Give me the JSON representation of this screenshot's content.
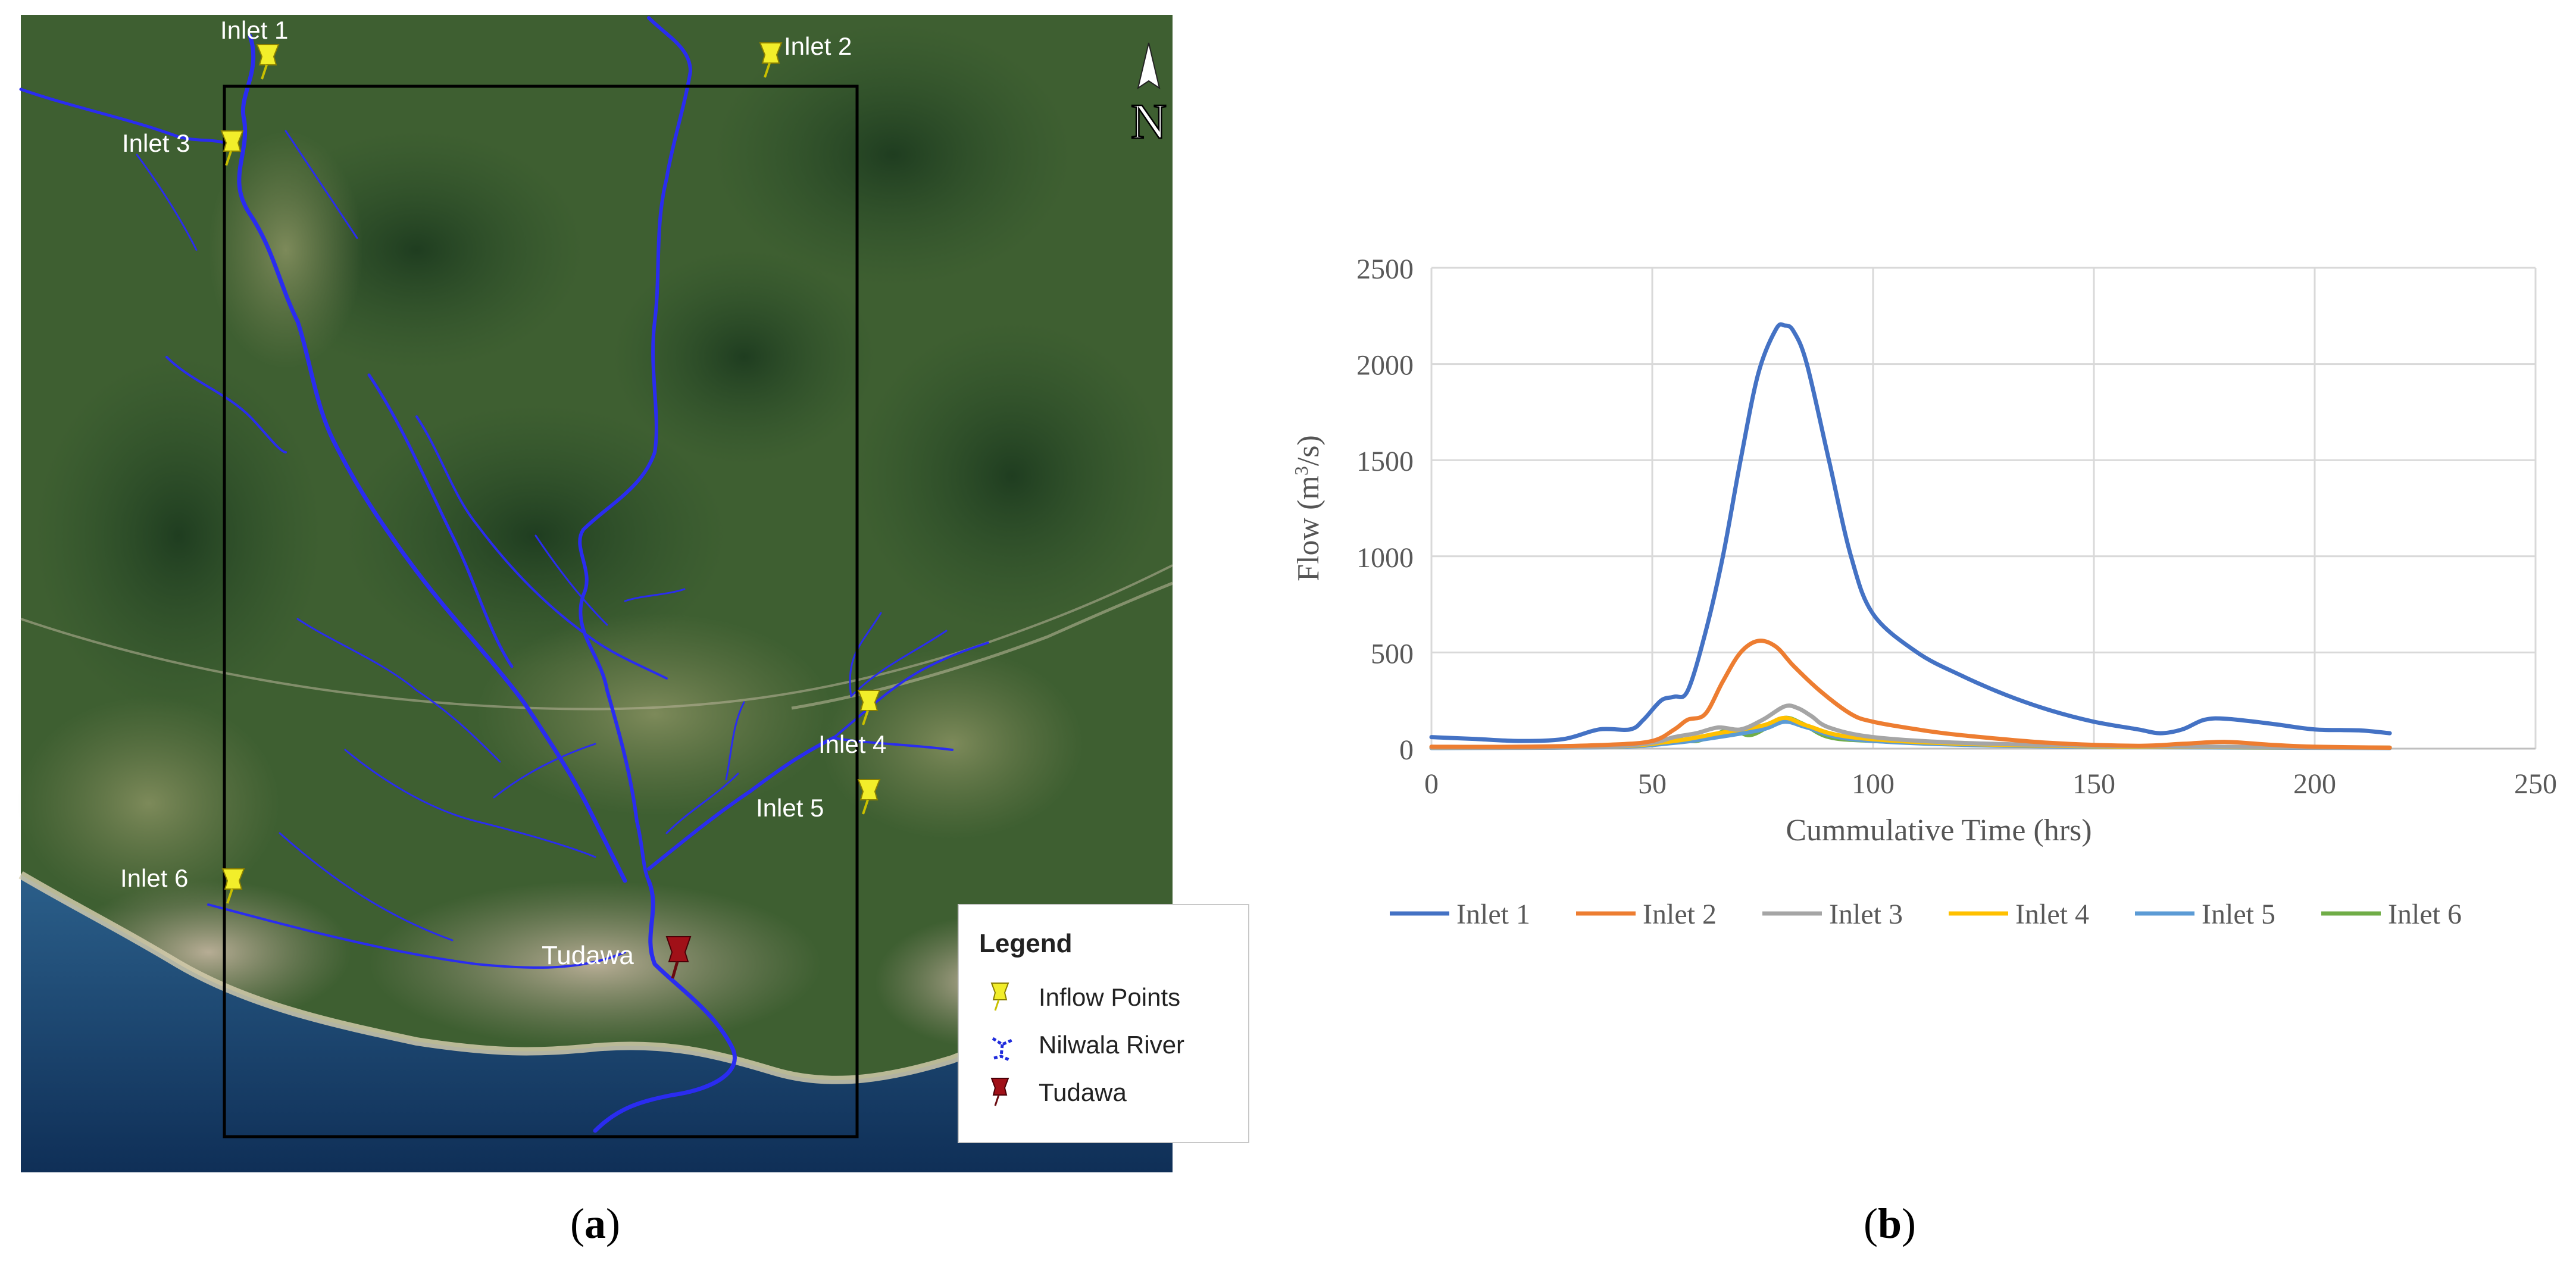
{
  "panel_a": {
    "caption_open": "(",
    "caption_letter": "a",
    "caption_close": ")",
    "north_label": "N",
    "inlets": [
      {
        "name": "Inlet 1"
      },
      {
        "name": "Inlet 2"
      },
      {
        "name": "Inlet 3"
      },
      {
        "name": "Inlet 4"
      },
      {
        "name": "Inlet 5"
      },
      {
        "name": "Inlet 6"
      }
    ],
    "tudawa_label": "Tudawa",
    "legend": {
      "title": "Legend",
      "items": [
        {
          "label": "Inflow Points",
          "color": "#f2ee2a"
        },
        {
          "label": "Nilwala River",
          "color": "#1f2bdc"
        },
        {
          "label": "Tudawa",
          "color": "#a01018"
        }
      ]
    },
    "colors": {
      "river": "#2a2cf0",
      "pin": "#f2ee2a",
      "tudawa_pin": "#a01018"
    }
  },
  "panel_b": {
    "caption_open": "(",
    "caption_letter": "b",
    "caption_close": ")"
  },
  "chart_data": {
    "type": "line",
    "title": "",
    "xlabel": "Cummulative Time (hrs)",
    "ylabel": "Flow (m3/s)",
    "ylabel_main": "Flow (m",
    "ylabel_sup": "3",
    "ylabel_end": "/s)",
    "xlim": [
      0,
      250
    ],
    "ylim": [
      0,
      2500
    ],
    "xticks": [
      0,
      50,
      100,
      150,
      200,
      250
    ],
    "yticks": [
      0,
      500,
      1000,
      1500,
      2000,
      2500
    ],
    "grid": true,
    "legend_position": "bottom",
    "series": [
      {
        "name": "Inlet 1",
        "color": "#4472c4",
        "x": [
          0,
          10,
          20,
          30,
          38,
          45,
          48,
          52,
          55,
          58,
          62,
          66,
          70,
          74,
          78,
          80,
          82,
          85,
          90,
          95,
          100,
          110,
          120,
          130,
          140,
          150,
          160,
          165,
          170,
          175,
          180,
          190,
          200,
          210,
          217
        ],
        "y": [
          60,
          50,
          40,
          50,
          100,
          100,
          150,
          250,
          270,
          300,
          600,
          1000,
          1500,
          1950,
          2180,
          2200,
          2170,
          2000,
          1500,
          1000,
          700,
          500,
          380,
          280,
          200,
          140,
          100,
          80,
          100,
          150,
          155,
          130,
          100,
          95,
          80
        ]
      },
      {
        "name": "Inlet 2",
        "color": "#ed7d31",
        "x": [
          0,
          20,
          40,
          50,
          55,
          58,
          62,
          66,
          70,
          74,
          78,
          82,
          88,
          95,
          100,
          110,
          120,
          140,
          160,
          170,
          180,
          190,
          200,
          217
        ],
        "y": [
          10,
          10,
          20,
          40,
          100,
          150,
          180,
          350,
          500,
          560,
          530,
          430,
          300,
          180,
          140,
          100,
          70,
          30,
          15,
          25,
          35,
          20,
          10,
          5
        ]
      },
      {
        "name": "Inlet 3",
        "color": "#a5a5a5",
        "x": [
          0,
          20,
          40,
          50,
          55,
          60,
          65,
          70,
          75,
          80,
          83,
          86,
          90,
          100,
          120,
          150,
          180,
          200,
          217
        ],
        "y": [
          5,
          5,
          10,
          30,
          60,
          80,
          110,
          100,
          150,
          220,
          210,
          170,
          110,
          60,
          30,
          15,
          10,
          5,
          5
        ]
      },
      {
        "name": "Inlet 4",
        "color": "#ffc000",
        "x": [
          0,
          40,
          55,
          65,
          75,
          80,
          85,
          95,
          120,
          160,
          217
        ],
        "y": [
          5,
          10,
          40,
          80,
          120,
          160,
          120,
          60,
          25,
          10,
          5
        ]
      },
      {
        "name": "Inlet 5",
        "color": "#5b9bd5",
        "x": [
          0,
          40,
          55,
          65,
          75,
          80,
          85,
          95,
          120,
          160,
          217
        ],
        "y": [
          3,
          8,
          30,
          60,
          100,
          140,
          110,
          50,
          20,
          8,
          3
        ]
      },
      {
        "name": "Inlet 6",
        "color": "#70ad47",
        "x": [
          0,
          20,
          40,
          50,
          55,
          60,
          65,
          68,
          72,
          76,
          80,
          84,
          90,
          100,
          120,
          150,
          180,
          217
        ],
        "y": [
          5,
          5,
          10,
          30,
          50,
          40,
          80,
          100,
          70,
          110,
          160,
          130,
          60,
          40,
          25,
          12,
          8,
          5
        ]
      }
    ]
  }
}
